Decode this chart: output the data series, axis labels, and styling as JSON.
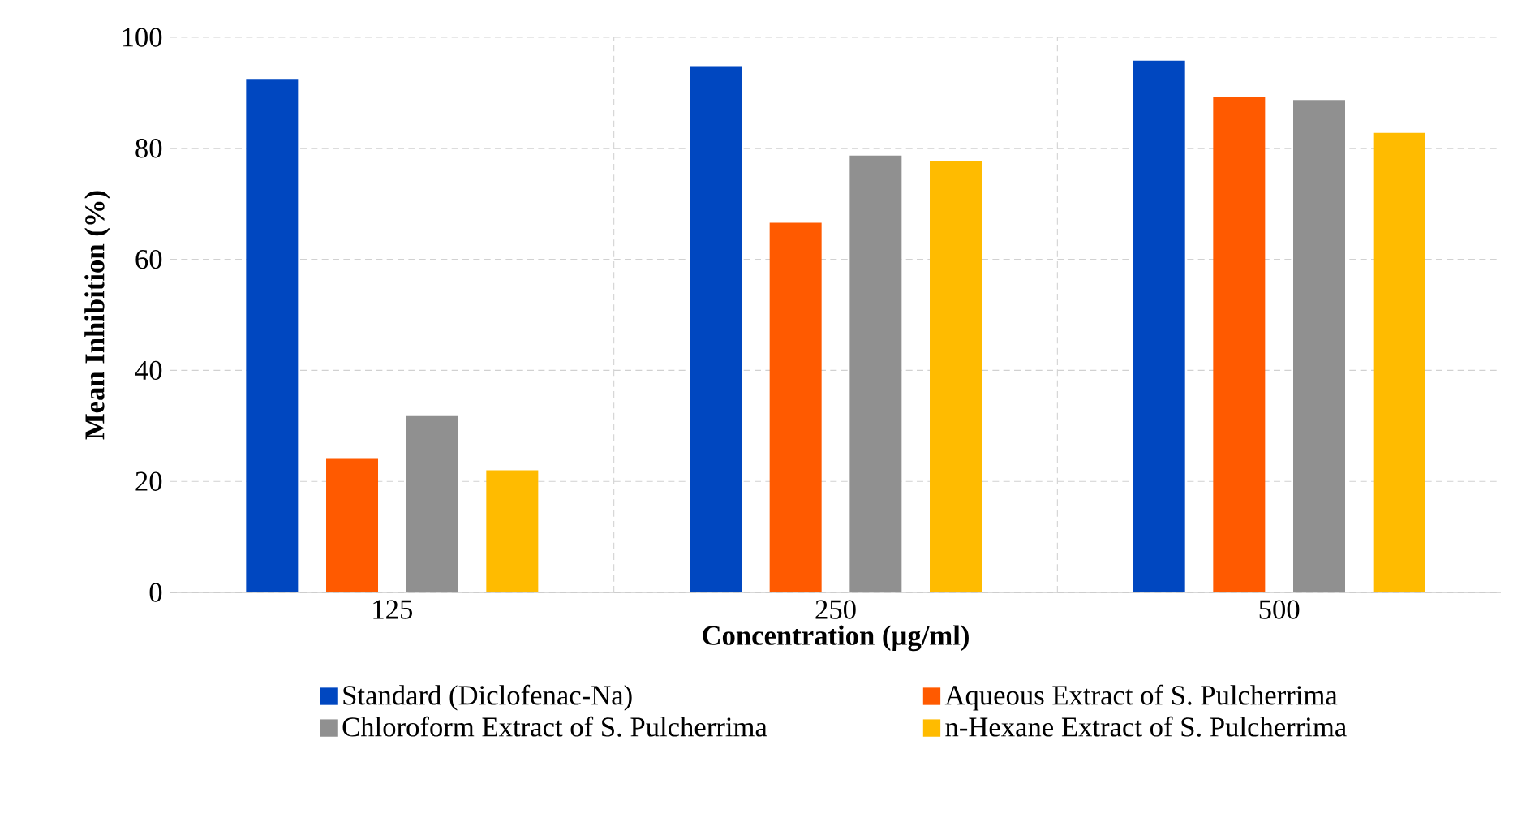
{
  "chart_data": {
    "type": "bar",
    "xlabel": "Concentration  (µg/ml)",
    "ylabel": "Mean  Inhibition  (%)",
    "categories": [
      "125",
      "250",
      "500"
    ],
    "series": [
      {
        "name": "Standard (Diclofenac-Na)",
        "color": "#0047c0",
        "values": [
          92.5,
          94.8,
          95.8
        ]
      },
      {
        "name": "Aqueous Extract of S. Pulcherrima",
        "color": "#ff5a00",
        "values": [
          24.2,
          66.6,
          89.2
        ]
      },
      {
        "name": "Chloroform Extract of S. Pulcherrima",
        "color": "#909090",
        "values": [
          31.9,
          78.7,
          88.7
        ]
      },
      {
        "name": "n-Hexane Extract of S. Pulcherrima",
        "color": "#ffbb00",
        "values": [
          22.0,
          77.7,
          82.8
        ]
      }
    ],
    "ylim": [
      0,
      100
    ],
    "yticks": [
      0,
      20,
      40,
      60,
      80,
      100
    ],
    "grid": true,
    "legend": "bottom"
  }
}
